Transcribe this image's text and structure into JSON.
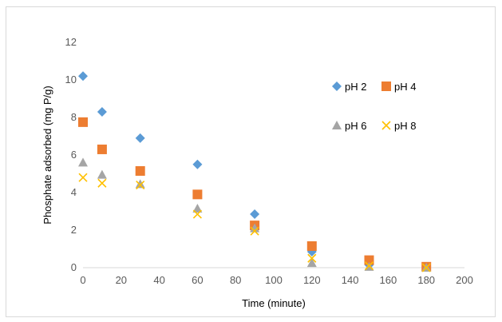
{
  "chart_data": {
    "type": "scatter",
    "xlabel": "Time (minute)",
    "ylabel": "Phosphate adsorbed  (mg P/g)",
    "xlim": [
      0,
      200
    ],
    "ylim": [
      0,
      12
    ],
    "xticks": [
      0,
      20,
      40,
      60,
      80,
      100,
      120,
      140,
      160,
      180,
      200
    ],
    "yticks": [
      0,
      2,
      4,
      6,
      8,
      10,
      12
    ],
    "grid": false,
    "legend": "right",
    "series": [
      {
        "name": "pH 2",
        "marker": "diamond",
        "color": "#5b9bd5",
        "x": [
          0,
          10,
          30,
          60,
          90,
          120,
          150,
          180
        ],
        "y": [
          10.2,
          8.3,
          6.9,
          5.5,
          2.85,
          0.85,
          0.15,
          0.05
        ]
      },
      {
        "name": "pH 4",
        "marker": "square",
        "color": "#ed7d31",
        "x": [
          0,
          10,
          30,
          60,
          90,
          120,
          150,
          180
        ],
        "y": [
          7.75,
          6.3,
          5.15,
          3.9,
          2.25,
          1.15,
          0.4,
          0.05
        ]
      },
      {
        "name": "pH 6",
        "marker": "triangle",
        "color": "#a5a5a5",
        "x": [
          0,
          10,
          30,
          60,
          90,
          120,
          150,
          180
        ],
        "y": [
          5.6,
          4.95,
          4.45,
          3.15,
          2.1,
          0.25,
          0.05,
          0.0
        ]
      },
      {
        "name": "pH 8",
        "marker": "x",
        "color": "#ffc000",
        "x": [
          0,
          10,
          30,
          60,
          90,
          120,
          150,
          180
        ],
        "y": [
          4.8,
          4.5,
          4.4,
          2.85,
          1.95,
          0.5,
          0.1,
          0.0
        ]
      }
    ]
  }
}
